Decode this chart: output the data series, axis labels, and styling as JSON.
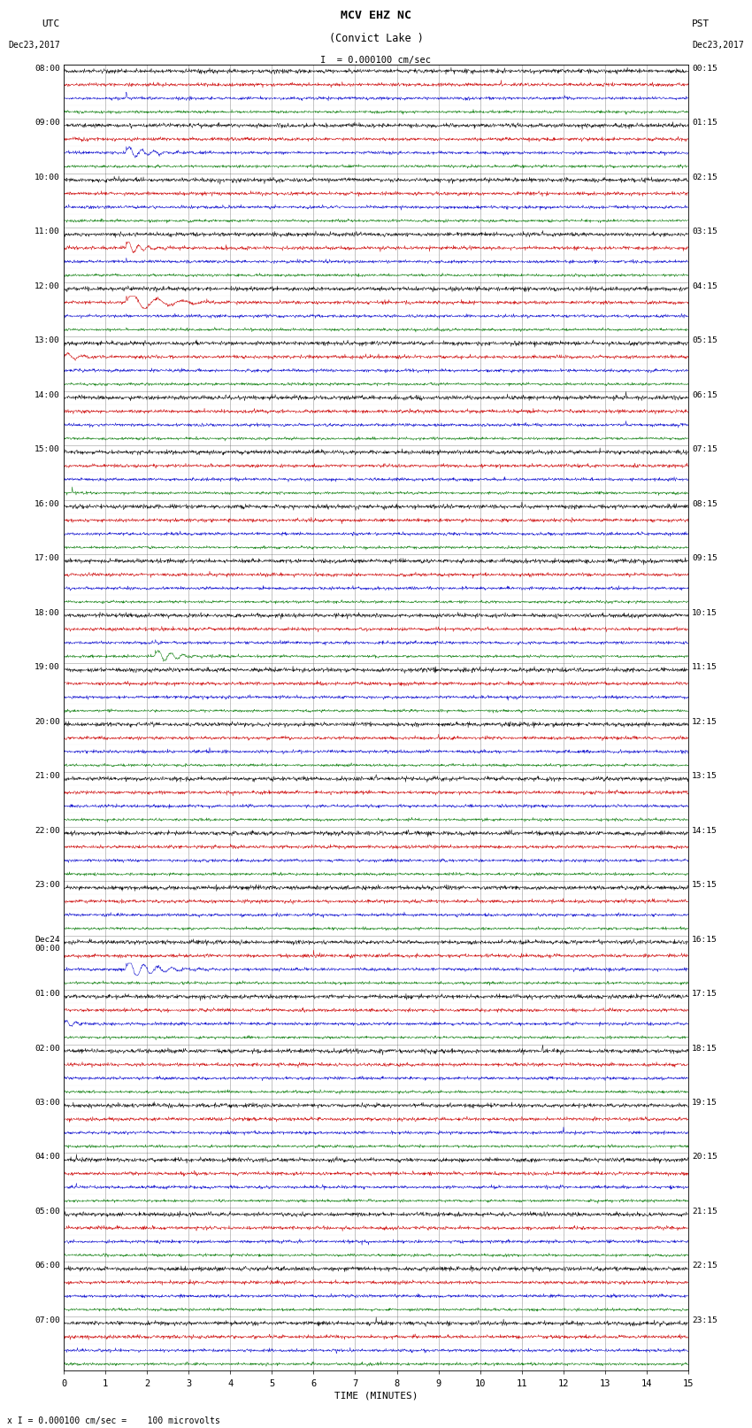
{
  "title_line1": "MCV EHZ NC",
  "title_line2": "(Convict Lake )",
  "scale_label": "I = 0.000100 cm/sec",
  "bottom_label": "x I = 0.000100 cm/sec =    100 microvolts",
  "bg_color": "#ffffff",
  "trace_colors": [
    "#000000",
    "#cc0000",
    "#0000cc",
    "#007700"
  ],
  "grid_color": "#777777",
  "xlabel": "TIME (MINUTES)",
  "xmin": 0,
  "xmax": 15,
  "xticks": [
    0,
    1,
    2,
    3,
    4,
    5,
    6,
    7,
    8,
    9,
    10,
    11,
    12,
    13,
    14,
    15
  ],
  "n_hour_groups": 24,
  "traces_per_group": 4,
  "utc_hour_labels": [
    "08:00",
    "09:00",
    "10:00",
    "11:00",
    "12:00",
    "13:00",
    "14:00",
    "15:00",
    "16:00",
    "17:00",
    "18:00",
    "19:00",
    "20:00",
    "21:00",
    "22:00",
    "23:00",
    "Dec24\n00:00",
    "01:00",
    "02:00",
    "03:00",
    "04:00",
    "05:00",
    "06:00",
    "07:00"
  ],
  "pst_hour_labels": [
    "00:15",
    "01:15",
    "02:15",
    "03:15",
    "04:15",
    "05:15",
    "06:15",
    "07:15",
    "08:15",
    "09:15",
    "10:15",
    "11:15",
    "12:15",
    "13:15",
    "14:15",
    "15:15",
    "16:15",
    "17:15",
    "18:15",
    "19:15",
    "20:15",
    "21:15",
    "22:15",
    "23:15"
  ]
}
